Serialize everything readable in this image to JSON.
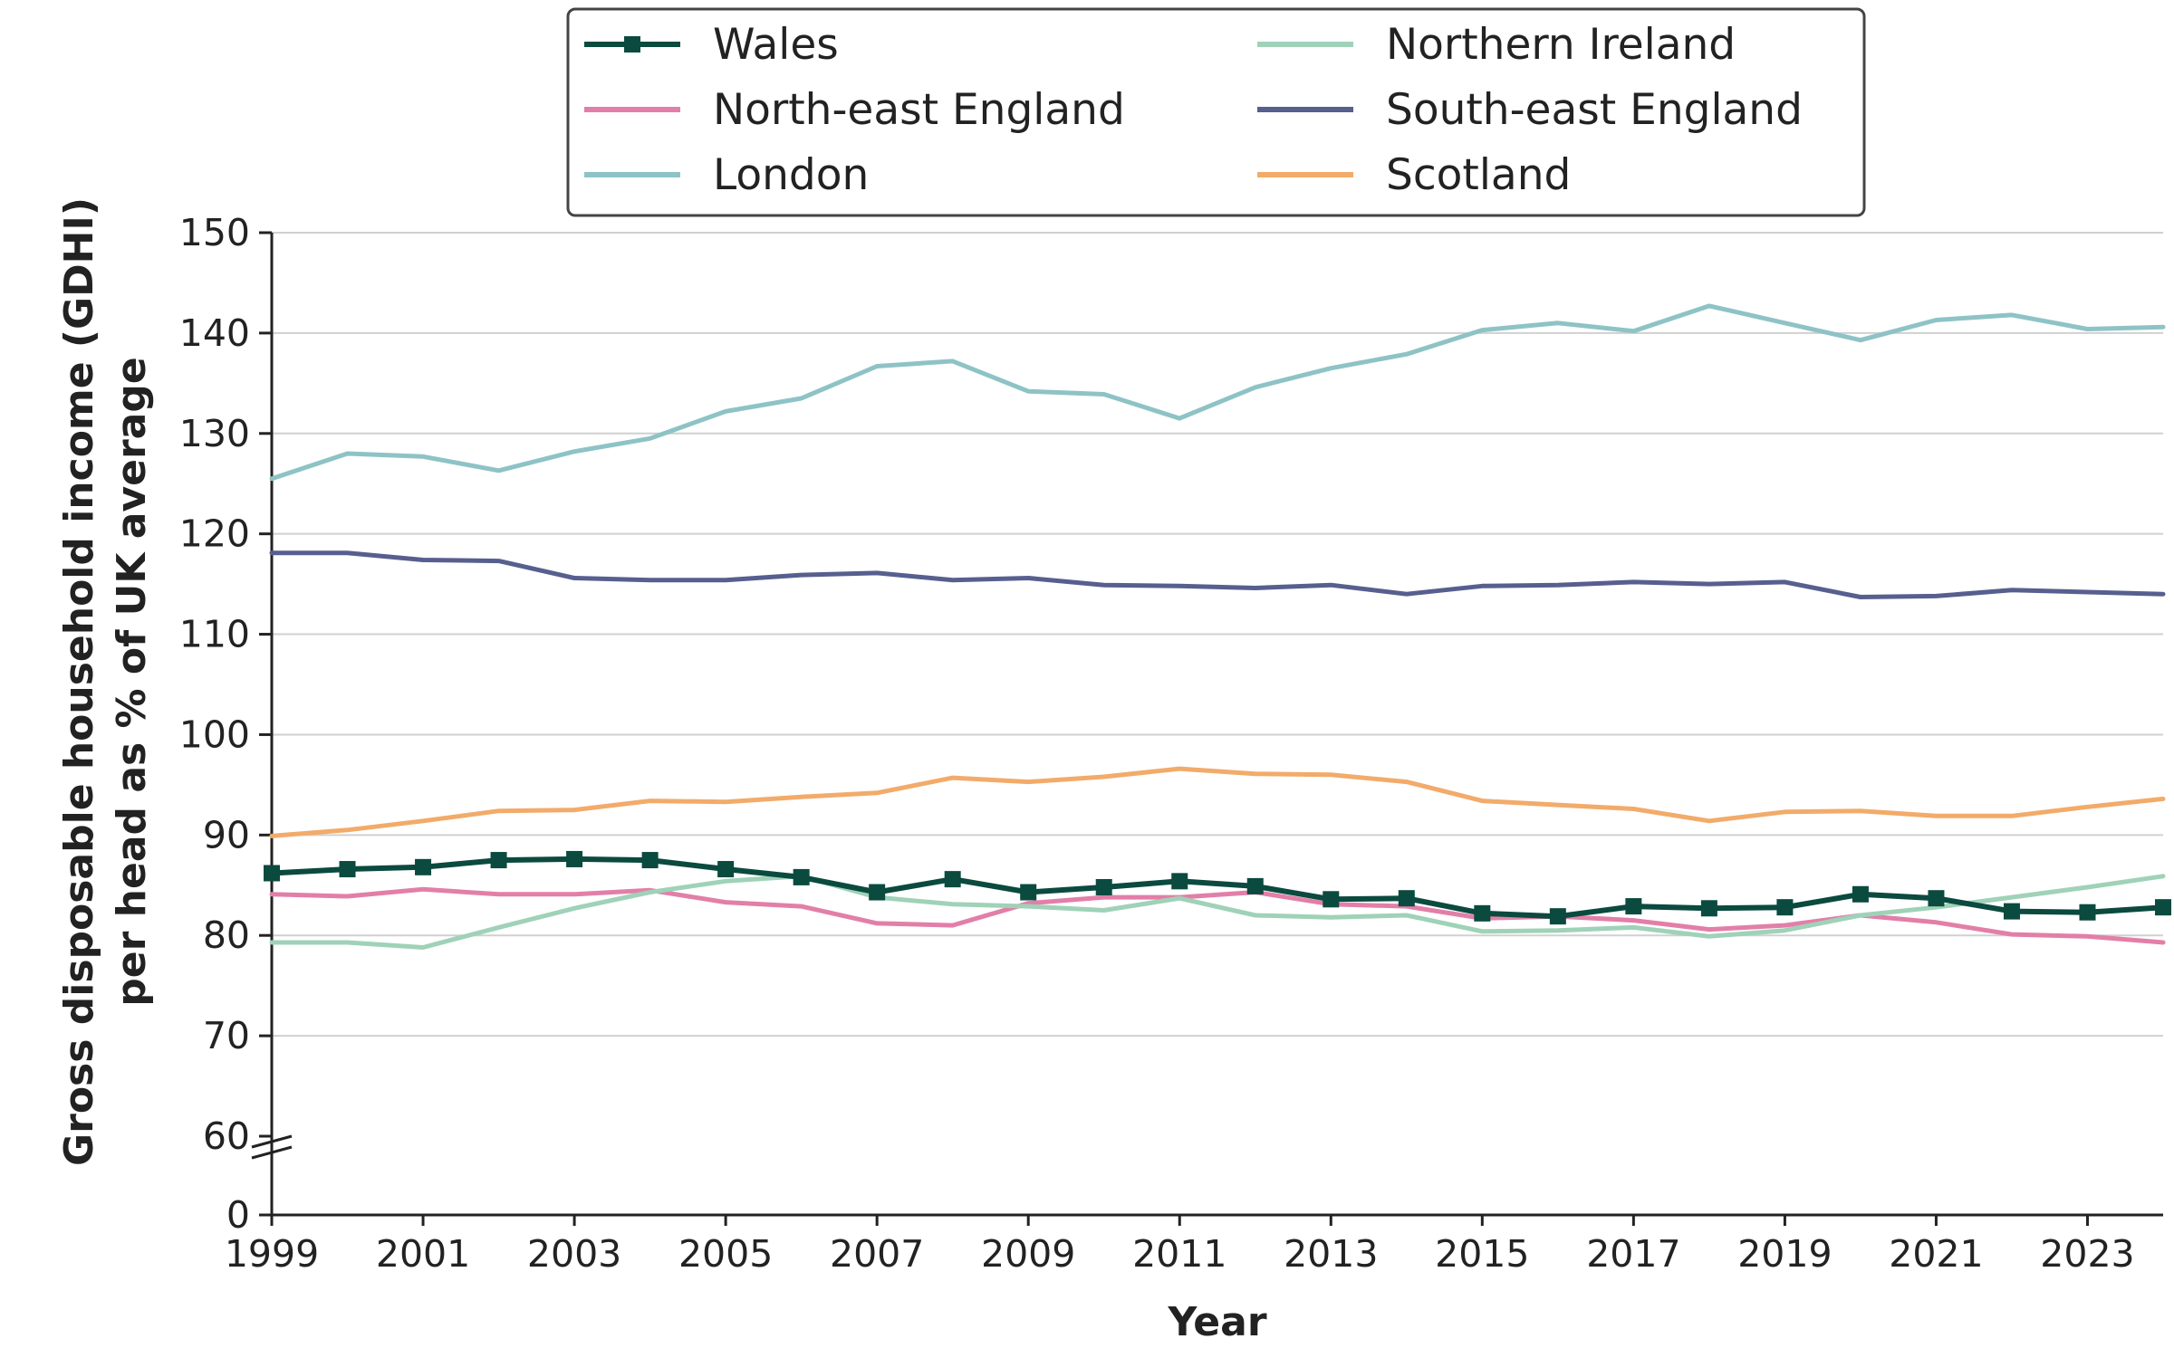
{
  "chart_data": {
    "type": "line",
    "xlabel": "Year",
    "ylabel_line1": "Gross disposable household income (GDHI)",
    "ylabel_line2": "per head as % of UK average",
    "x": [
      1999,
      2000,
      2001,
      2002,
      2003,
      2004,
      2005,
      2006,
      2007,
      2008,
      2009,
      2010,
      2011,
      2012,
      2013,
      2014,
      2015,
      2016,
      2017,
      2018,
      2019,
      2020,
      2021,
      2022,
      2023,
      2024
    ],
    "x_ticks": [
      "1999",
      "2001",
      "2003",
      "2005",
      "2007",
      "2009",
      "2011",
      "2013",
      "2015",
      "2017",
      "2019",
      "2021",
      "2023"
    ],
    "y_ticks": [
      "150",
      "140",
      "130",
      "120",
      "110",
      "100",
      "90",
      "80",
      "70",
      "60",
      "0"
    ],
    "ylim_upper": [
      60,
      150
    ],
    "axis_break": "between 0 and 60",
    "grid": "horizontal",
    "legend_position": "top-center",
    "series": [
      {
        "name": "Wales",
        "color": "#0b4a3f",
        "marker": "square",
        "values": [
          86.2,
          86.6,
          86.8,
          87.5,
          87.6,
          87.5,
          86.6,
          85.8,
          84.3,
          85.6,
          84.3,
          84.8,
          85.4,
          84.9,
          83.6,
          83.7,
          82.2,
          81.9,
          82.9,
          82.7,
          82.8,
          84.1,
          83.7,
          82.4,
          82.3,
          82.8
        ]
      },
      {
        "name": "North-east England",
        "color": "#e27fa8",
        "marker": "none",
        "values": [
          84.1,
          83.9,
          84.6,
          84.1,
          84.1,
          84.5,
          83.3,
          82.9,
          81.2,
          81.0,
          83.2,
          83.8,
          83.8,
          84.3,
          83.1,
          82.9,
          81.7,
          81.9,
          81.5,
          80.6,
          81.0,
          82.0,
          81.3,
          80.1,
          79.9,
          79.3
        ]
      },
      {
        "name": "London",
        "color": "#8ec3c6",
        "marker": "none",
        "values": [
          125.5,
          128.0,
          127.7,
          126.3,
          128.2,
          129.5,
          132.2,
          133.5,
          136.7,
          137.2,
          134.2,
          133.9,
          131.5,
          134.6,
          136.5,
          137.9,
          140.3,
          141.0,
          140.2,
          142.7,
          141.0,
          139.3,
          141.3,
          141.8,
          140.4,
          140.6
        ]
      },
      {
        "name": "Northern Ireland",
        "color": "#9fd2b8",
        "marker": "none",
        "values": [
          79.3,
          79.3,
          78.8,
          80.8,
          82.7,
          84.3,
          85.4,
          85.9,
          83.8,
          83.1,
          82.9,
          82.5,
          83.7,
          82.0,
          81.8,
          82.0,
          80.4,
          80.5,
          80.8,
          79.9,
          80.5,
          82.0,
          82.8,
          83.8,
          84.8,
          85.9
        ]
      },
      {
        "name": "South-east England",
        "color": "#575f8f",
        "marker": "none",
        "values": [
          118.1,
          118.1,
          117.4,
          117.3,
          115.6,
          115.4,
          115.4,
          115.9,
          116.1,
          115.4,
          115.6,
          114.9,
          114.8,
          114.6,
          114.9,
          114.0,
          114.8,
          114.9,
          115.2,
          115.0,
          115.2,
          113.7,
          113.8,
          114.4,
          114.2,
          114.0
        ]
      },
      {
        "name": "Scotland",
        "color": "#f2ab6a",
        "marker": "none",
        "values": [
          89.9,
          90.5,
          91.4,
          92.4,
          92.5,
          93.4,
          93.3,
          93.8,
          94.2,
          95.7,
          95.3,
          95.8,
          96.6,
          96.1,
          96.0,
          95.3,
          93.4,
          93.0,
          92.6,
          91.4,
          92.3,
          92.4,
          91.9,
          91.9,
          92.8,
          93.6
        ]
      }
    ]
  }
}
